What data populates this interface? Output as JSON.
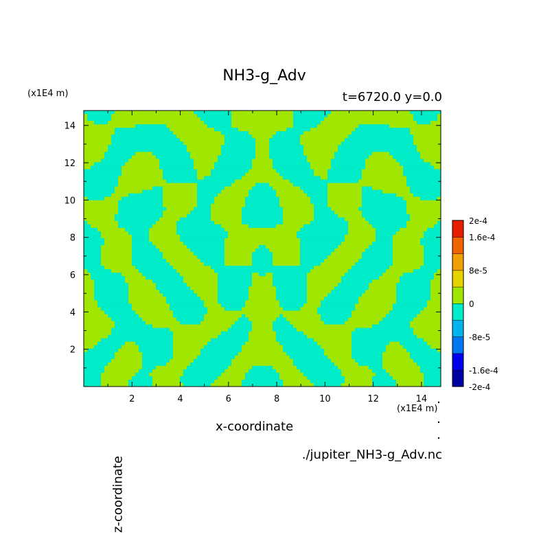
{
  "chart_data": {
    "type": "heatmap",
    "title": "NH3-g_Adv",
    "subtitle": "t=6720.0 y=0.0",
    "xlabel": "x-coordinate",
    "ylabel": "z-coordinate",
    "x_unit": "(x1E4 m)",
    "y_unit": "(x1E4 m)",
    "xlim": [
      0,
      14.8
    ],
    "ylim": [
      0,
      14.8
    ],
    "x_ticks": [
      "2",
      "4",
      "6",
      "8",
      "10",
      "12",
      "14"
    ],
    "y_ticks": [
      "2",
      "4",
      "6",
      "8",
      "10",
      "12",
      "14"
    ],
    "colorbar": {
      "levels": [
        -0.0002,
        -0.00016,
        -0.00012,
        -8e-05,
        -4e-05,
        0,
        4e-05,
        8e-05,
        0.00012,
        0.00016,
        0.0002
      ],
      "labels": [
        "2e-4",
        "1.6e-4",
        "8e-5",
        "0",
        "-8e-5",
        "-1.6e-4",
        "-2e-4"
      ],
      "colors": [
        "#0000a0",
        "#0000ee",
        "#0078f0",
        "#00b4f0",
        "#00ebc8",
        "#a0e600",
        "#e6d200",
        "#f0a000",
        "#f06400",
        "#e61e00"
      ]
    },
    "dominant_colors": {
      "negative": "#00ebc8",
      "positive": "#a0e600"
    },
    "note_visible": "./jupiter_NH3-g_Adv.nc"
  },
  "footer": {
    "filename": "./jupiter_NH3-g_Adv.nc"
  }
}
